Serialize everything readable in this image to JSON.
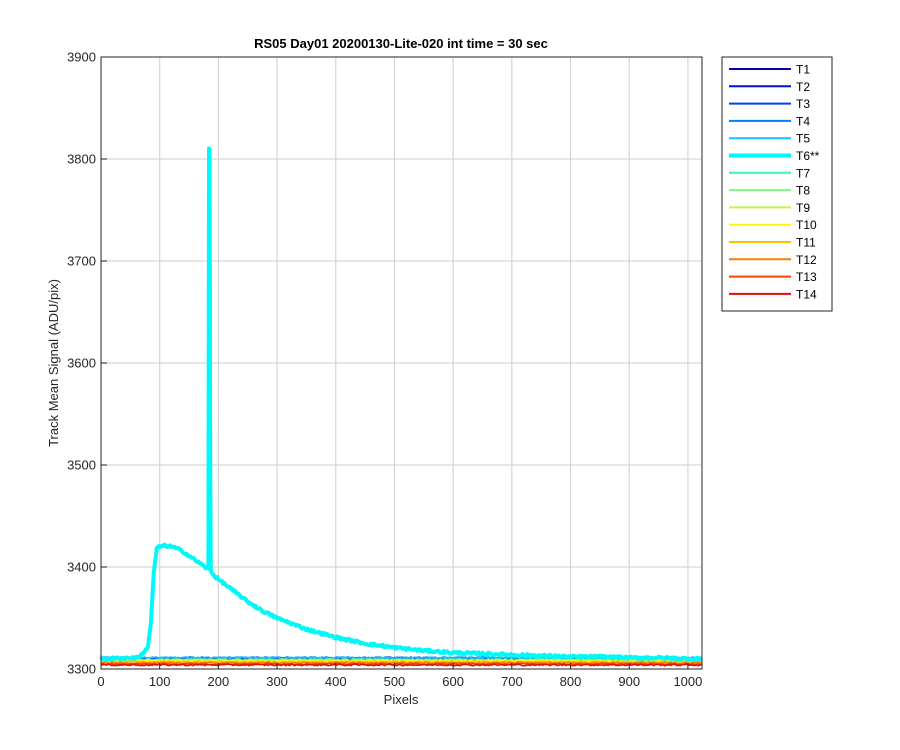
{
  "chart_data": {
    "type": "line",
    "title": "RS05 Day01 20200130-Lite-020 int time = 30 sec",
    "xlabel": "Pixels",
    "ylabel": "Track Mean Signal (ADU/pix)",
    "xlim": [
      0,
      1024
    ],
    "ylim": [
      3300,
      3900
    ],
    "xticks": [
      "0",
      "100",
      "200",
      "300",
      "400",
      "500",
      "600",
      "700",
      "800",
      "900",
      "1000"
    ],
    "yticks": [
      "3300",
      "3400",
      "3500",
      "3600",
      "3700",
      "3800",
      "3900"
    ],
    "grid": true,
    "legend_position": "outside-top-right",
    "series": [
      {
        "name": "T1",
        "color": "#0000a8",
        "baseline": 3310,
        "highlight": false
      },
      {
        "name": "T2",
        "color": "#0010d8",
        "baseline": 3310,
        "highlight": false
      },
      {
        "name": "T3",
        "color": "#0040f0",
        "baseline": 3311,
        "highlight": false
      },
      {
        "name": "T4",
        "color": "#0080f8",
        "baseline": 3311,
        "highlight": false
      },
      {
        "name": "T5",
        "color": "#10c0ff",
        "baseline": 3311,
        "highlight": false
      },
      {
        "name": "T6**",
        "color": "#00f8f8",
        "highlight": true,
        "x": [
          0,
          60,
          70,
          80,
          85,
          90,
          95,
          100,
          110,
          120,
          130,
          140,
          150,
          160,
          170,
          180,
          183,
          184,
          185,
          186,
          187,
          188,
          190,
          200,
          225,
          250,
          275,
          300,
          350,
          400,
          450,
          500,
          550,
          600,
          650,
          700,
          750,
          800,
          850,
          900,
          950,
          1000,
          1024
        ],
        "y": [
          3310,
          3311,
          3314,
          3322,
          3345,
          3395,
          3418,
          3420,
          3421,
          3420,
          3418,
          3415,
          3411,
          3407,
          3403,
          3399,
          3398,
          3810,
          3810,
          3500,
          3400,
          3396,
          3393,
          3388,
          3377,
          3366,
          3357,
          3350,
          3339,
          3331,
          3325,
          3321,
          3318,
          3316,
          3315,
          3314,
          3313,
          3312,
          3312,
          3311,
          3311,
          3310,
          3310
        ]
      },
      {
        "name": "T7",
        "color": "#40f0c0",
        "baseline": 3309,
        "highlight": false
      },
      {
        "name": "T8",
        "color": "#80f880",
        "baseline": 3309,
        "highlight": false
      },
      {
        "name": "T9",
        "color": "#c0f840",
        "baseline": 3308,
        "highlight": false
      },
      {
        "name": "T10",
        "color": "#f8f810",
        "baseline": 3308,
        "highlight": false
      },
      {
        "name": "T11",
        "color": "#f8c000",
        "baseline": 3307,
        "highlight": false
      },
      {
        "name": "T12",
        "color": "#f88000",
        "baseline": 3306,
        "highlight": false
      },
      {
        "name": "T13",
        "color": "#f84000",
        "baseline": 3305,
        "highlight": false
      },
      {
        "name": "T14",
        "color": "#e01000",
        "baseline": 3304,
        "highlight": false
      }
    ]
  }
}
